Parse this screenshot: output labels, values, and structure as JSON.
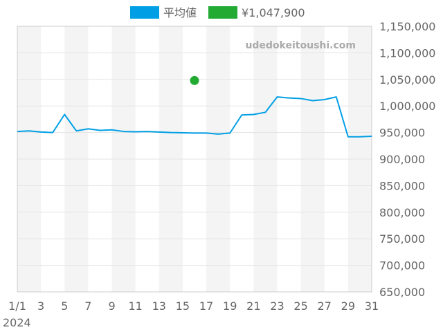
{
  "chart_data": {
    "type": "line",
    "watermark": "udedokeitoushi.com",
    "year_label": "2024",
    "legend": [
      {
        "label": "平均値",
        "color": "#009fe5"
      },
      {
        "label": "¥1,047,900",
        "color": "#22aa33"
      }
    ],
    "x_ticks": [
      "1/1",
      "3",
      "5",
      "7",
      "9",
      "11",
      "13",
      "15",
      "17",
      "19",
      "21",
      "23",
      "25",
      "27",
      "29",
      "31"
    ],
    "xlim": [
      1,
      31
    ],
    "ylim": [
      650000,
      1150000
    ],
    "y_ticks": [
      "650,000",
      "700,000",
      "750,000",
      "800,000",
      "850,000",
      "900,000",
      "950,000",
      "1,000,000",
      "1,050,000",
      "1,100,000",
      "1,150,000"
    ],
    "y_tick_values": [
      650000,
      700000,
      750000,
      800000,
      850000,
      900000,
      950000,
      1000000,
      1050000,
      1100000,
      1150000
    ],
    "series": [
      {
        "name": "平均値",
        "color": "#009fe5",
        "x": [
          1,
          2,
          3,
          4,
          5,
          6,
          7,
          8,
          9,
          10,
          11,
          12,
          13,
          14,
          15,
          16,
          17,
          18,
          19,
          20,
          21,
          22,
          23,
          24,
          25,
          26,
          27,
          28,
          29,
          30,
          31
        ],
        "y": [
          952000,
          953000,
          951000,
          950000,
          984000,
          953000,
          957000,
          954000,
          955000,
          952000,
          951500,
          952000,
          951000,
          950000,
          949500,
          949000,
          949000,
          947000,
          949000,
          983000,
          984000,
          988000,
          1017000,
          1015000,
          1014000,
          1010000,
          1012000,
          1017000,
          942000,
          942000,
          943000
        ]
      },
      {
        "name": "¥1,047,900",
        "color": "#22aa33",
        "x": [
          16
        ],
        "y": [
          1047900
        ]
      }
    ]
  }
}
